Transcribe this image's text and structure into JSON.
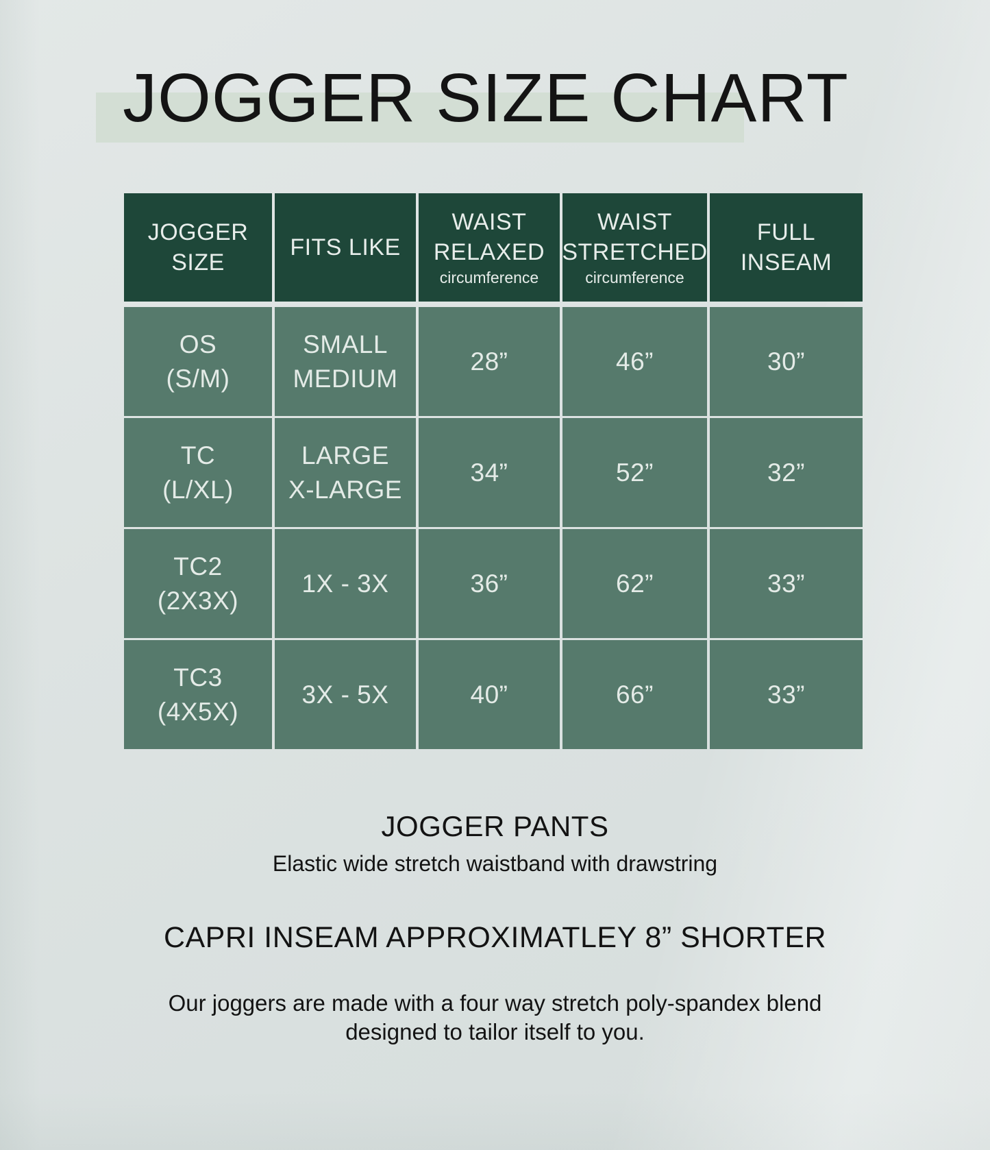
{
  "title": "JOGGER SIZE CHART",
  "colors": {
    "header_green": "#1e4739",
    "cell_green": "#567a6c",
    "title_highlight": "#d3ded4",
    "background": "#dde3e2",
    "text_dark": "#141414",
    "text_light": "#e7edea"
  },
  "table": {
    "columns": [
      {
        "title": "JOGGER SIZE",
        "sub": ""
      },
      {
        "title": "FITS LIKE",
        "sub": ""
      },
      {
        "title": "WAIST RELAXED",
        "sub": "circumference"
      },
      {
        "title": "WAIST STRETCHED",
        "sub": "circumference"
      },
      {
        "title": "FULL INSEAM",
        "sub": ""
      }
    ],
    "rows": [
      {
        "size": "OS\n(S/M)",
        "fits": "SMALL\nMEDIUM",
        "relaxed": "28”",
        "stretched": "46”",
        "inseam": "30”"
      },
      {
        "size": "TC\n(L/XL)",
        "fits": "LARGE\nX-LARGE",
        "relaxed": "34”",
        "stretched": "52”",
        "inseam": "32”"
      },
      {
        "size": "TC2\n(2X3X)",
        "fits": "1X - 3X",
        "relaxed": "36”",
        "stretched": "62”",
        "inseam": "33”"
      },
      {
        "size": "TC3\n(4X5X)",
        "fits": "3X - 5X",
        "relaxed": "40”",
        "stretched": "66”",
        "inseam": "33”"
      }
    ]
  },
  "footer": {
    "product_heading": "JOGGER PANTS",
    "product_sub": "Elastic wide stretch waistband with drawstring",
    "capri_note": "CAPRI INSEAM APPROXIMATLEY 8” SHORTER",
    "material_note": "Our joggers are made with a four way stretch poly-spandex blend\ndesigned to tailor itself to you."
  },
  "chart_data": {
    "type": "table",
    "title": "JOGGER SIZE CHART",
    "columns": [
      "JOGGER SIZE",
      "FITS LIKE",
      "WAIST RELAXED circumference",
      "WAIST STRETCHED circumference",
      "FULL INSEAM"
    ],
    "rows": [
      [
        "OS (S/M)",
        "SMALL MEDIUM",
        "28”",
        "46”",
        "30”"
      ],
      [
        "TC (L/XL)",
        "LARGE X-LARGE",
        "34”",
        "52”",
        "32”"
      ],
      [
        "TC2 (2X3X)",
        "1X - 3X",
        "36”",
        "62”",
        "33”"
      ],
      [
        "TC3 (4X5X)",
        "3X - 5X",
        "40”",
        "66”",
        "33”"
      ]
    ]
  }
}
